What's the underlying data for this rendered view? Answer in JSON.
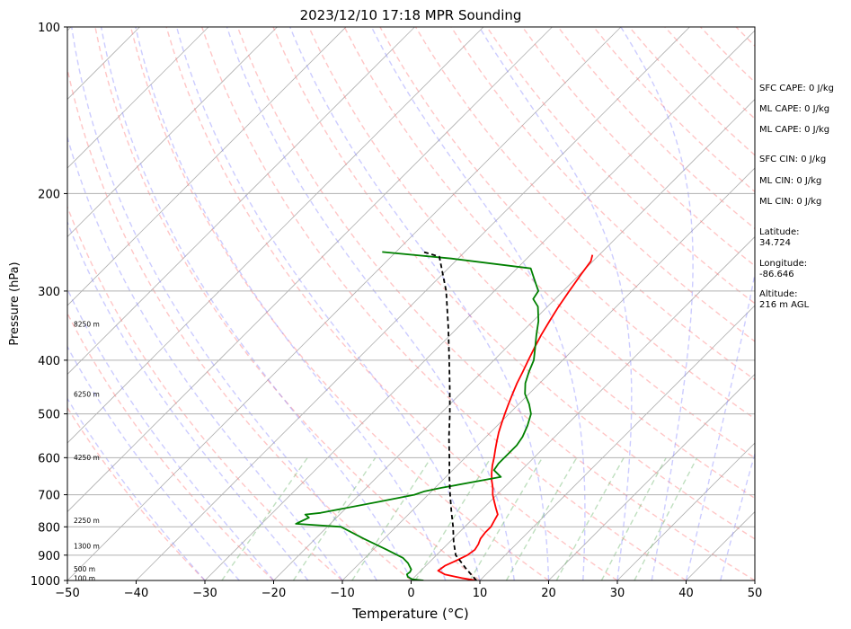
{
  "chart_data": {
    "type": "line",
    "title": "2023/12/10 17:18 MPR Sounding",
    "xlabel": "Temperature (°C)",
    "ylabel": "Pressure (hPa)",
    "xlim": [
      -50,
      50
    ],
    "ylim": [
      1000,
      100
    ],
    "yscale": "log",
    "x_ticks": [
      -50,
      -40,
      -30,
      -20,
      -10,
      0,
      10,
      20,
      30,
      40,
      50
    ],
    "x_tick_labels": [
      "−50",
      "−40",
      "−30",
      "−20",
      "−10",
      "0",
      "10",
      "20",
      "30",
      "40",
      "50"
    ],
    "y_ticks": [
      1000,
      900,
      800,
      700,
      600,
      500,
      400,
      300,
      200,
      100
    ],
    "y_tick_labels": [
      "1000",
      "900",
      "800",
      "700",
      "600",
      "500",
      "400",
      "300",
      "200",
      "100"
    ],
    "y_gridlines": [
      1000,
      900,
      800,
      700,
      600,
      500,
      400,
      300,
      200
    ],
    "height_labels": [
      {
        "p": 995,
        "text": "100 m"
      },
      {
        "p": 957,
        "text": "500 m"
      },
      {
        "p": 870,
        "text": "1300 m"
      },
      {
        "p": 781,
        "text": "2250 m"
      },
      {
        "p": 602,
        "text": "4250 m"
      },
      {
        "p": 462,
        "text": "6250 m"
      },
      {
        "p": 345,
        "text": "8250 m"
      }
    ],
    "series": [
      {
        "role": "temperature",
        "color": "#ff0000",
        "points": [
          [
            9.5,
            1000
          ],
          [
            7,
            990
          ],
          [
            4,
            975
          ],
          [
            2.5,
            960
          ],
          [
            2.8,
            940
          ],
          [
            3.5,
            925
          ],
          [
            4.5,
            900
          ],
          [
            4.8,
            880
          ],
          [
            4.5,
            860
          ],
          [
            4,
            840
          ],
          [
            3.8,
            820
          ],
          [
            3.8,
            800
          ],
          [
            3.4,
            780
          ],
          [
            3,
            760
          ],
          [
            1.8,
            740
          ],
          [
            0.6,
            720
          ],
          [
            -0.6,
            700
          ],
          [
            -1.6,
            680
          ],
          [
            -2.8,
            660
          ],
          [
            -3.9,
            640
          ],
          [
            -4.9,
            620
          ],
          [
            -5.8,
            600
          ],
          [
            -6.8,
            580
          ],
          [
            -7.8,
            560
          ],
          [
            -8.8,
            540
          ],
          [
            -9.7,
            520
          ],
          [
            -10.6,
            500
          ],
          [
            -11.5,
            480
          ],
          [
            -12.4,
            460
          ],
          [
            -13.3,
            440
          ],
          [
            -14.1,
            420
          ],
          [
            -15,
            400
          ],
          [
            -15.9,
            380
          ],
          [
            -16.8,
            360
          ],
          [
            -17.6,
            340
          ],
          [
            -18.4,
            320
          ],
          [
            -19.1,
            300
          ],
          [
            -19.8,
            280
          ],
          [
            -20.3,
            265
          ],
          [
            -21,
            258
          ]
        ]
      },
      {
        "role": "dewpoint",
        "color": "#008000",
        "points": [
          [
            1.8,
            1000
          ],
          [
            0,
            995
          ],
          [
            -1,
            985
          ],
          [
            -1.5,
            975
          ],
          [
            -1.4,
            965
          ],
          [
            -1.6,
            955
          ],
          [
            -3,
            930
          ],
          [
            -4.5,
            910
          ],
          [
            -8,
            880
          ],
          [
            -13,
            840
          ],
          [
            -18,
            800
          ],
          [
            -25,
            790
          ],
          [
            -24.5,
            780
          ],
          [
            -24,
            770
          ],
          [
            -25,
            760
          ],
          [
            -23,
            755
          ],
          [
            -16,
            720
          ],
          [
            -12,
            700
          ],
          [
            -11,
            690
          ],
          [
            -9,
            680
          ],
          [
            -2,
            650
          ],
          [
            -4,
            632
          ],
          [
            -4.3,
            615
          ],
          [
            -4.3,
            595
          ],
          [
            -4.3,
            570
          ],
          [
            -4.7,
            550
          ],
          [
            -5.6,
            525
          ],
          [
            -6.8,
            500
          ],
          [
            -8.5,
            480
          ],
          [
            -10.6,
            460
          ],
          [
            -12.1,
            440
          ],
          [
            -13.2,
            420
          ],
          [
            -14.2,
            400
          ],
          [
            -15.8,
            380
          ],
          [
            -17.5,
            360
          ],
          [
            -19.2,
            340
          ],
          [
            -21.4,
            320
          ],
          [
            -23.2,
            310
          ],
          [
            -23.6,
            300
          ],
          [
            -26,
            285
          ],
          [
            -28,
            273
          ],
          [
            -41,
            262
          ],
          [
            -52,
            255
          ]
        ]
      },
      {
        "role": "parcel",
        "color": "#000000",
        "dashed": true,
        "points": [
          [
            9.5,
            1000
          ],
          [
            7.5,
            970
          ],
          [
            6,
            948
          ],
          [
            4.5,
            925
          ],
          [
            2.8,
            900
          ],
          [
            0.5,
            850
          ],
          [
            -1.7,
            800
          ],
          [
            -4.2,
            750
          ],
          [
            -6.8,
            700
          ],
          [
            -9.5,
            650
          ],
          [
            -12.3,
            600
          ],
          [
            -15.4,
            550
          ],
          [
            -18.6,
            500
          ],
          [
            -22.3,
            450
          ],
          [
            -26.5,
            400
          ],
          [
            -31.3,
            350
          ],
          [
            -37,
            300
          ],
          [
            -43,
            260
          ],
          [
            -46,
            255
          ]
        ]
      }
    ]
  },
  "side_panel": [
    "SFC CAPE: 0 J/kg",
    "ML CAPE: 0 J/kg",
    "ML CAPE: 0 J/kg",
    "SFC CIN: 0 J/kg",
    "ML CIN: 0 J/kg",
    "ML CIN: 0 J/kg",
    "Latitude:\n34.724",
    "Longitude:\n-86.646",
    "Altitude:\n216 m AGL"
  ],
  "colors": {
    "isotherm": "#b0b0b0",
    "dry_adiabat": "#ff8080",
    "moist_adiabat": "#8080ff",
    "mixing_ratio": "#60b060",
    "grid": "#b0b0b0"
  }
}
